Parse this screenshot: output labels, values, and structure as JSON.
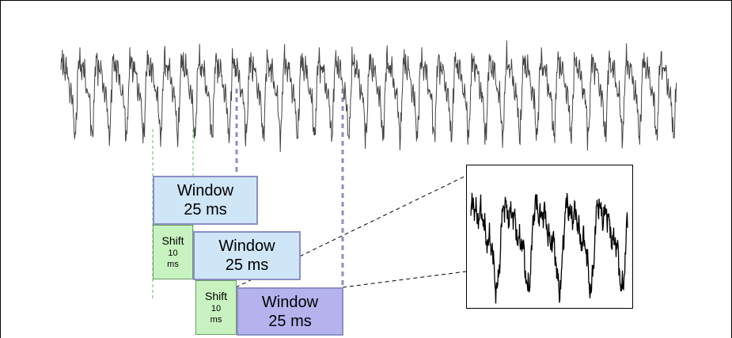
{
  "windows": [
    {
      "label": "Window",
      "duration": "25 ms"
    },
    {
      "label": "Window",
      "duration": "25 ms"
    },
    {
      "label": "Window",
      "duration": "25 ms"
    }
  ],
  "shifts": [
    {
      "label": "Shift",
      "value": "10",
      "unit": "ms"
    },
    {
      "label": "Shift",
      "value": "10",
      "unit": "ms"
    }
  ],
  "colors": {
    "window_fill": "#cfe6f8",
    "window_highlight_fill": "#b6b2ee",
    "window_border": "#8a8fc4",
    "shift_fill": "#c9f2c1",
    "waveform": "#444444"
  }
}
